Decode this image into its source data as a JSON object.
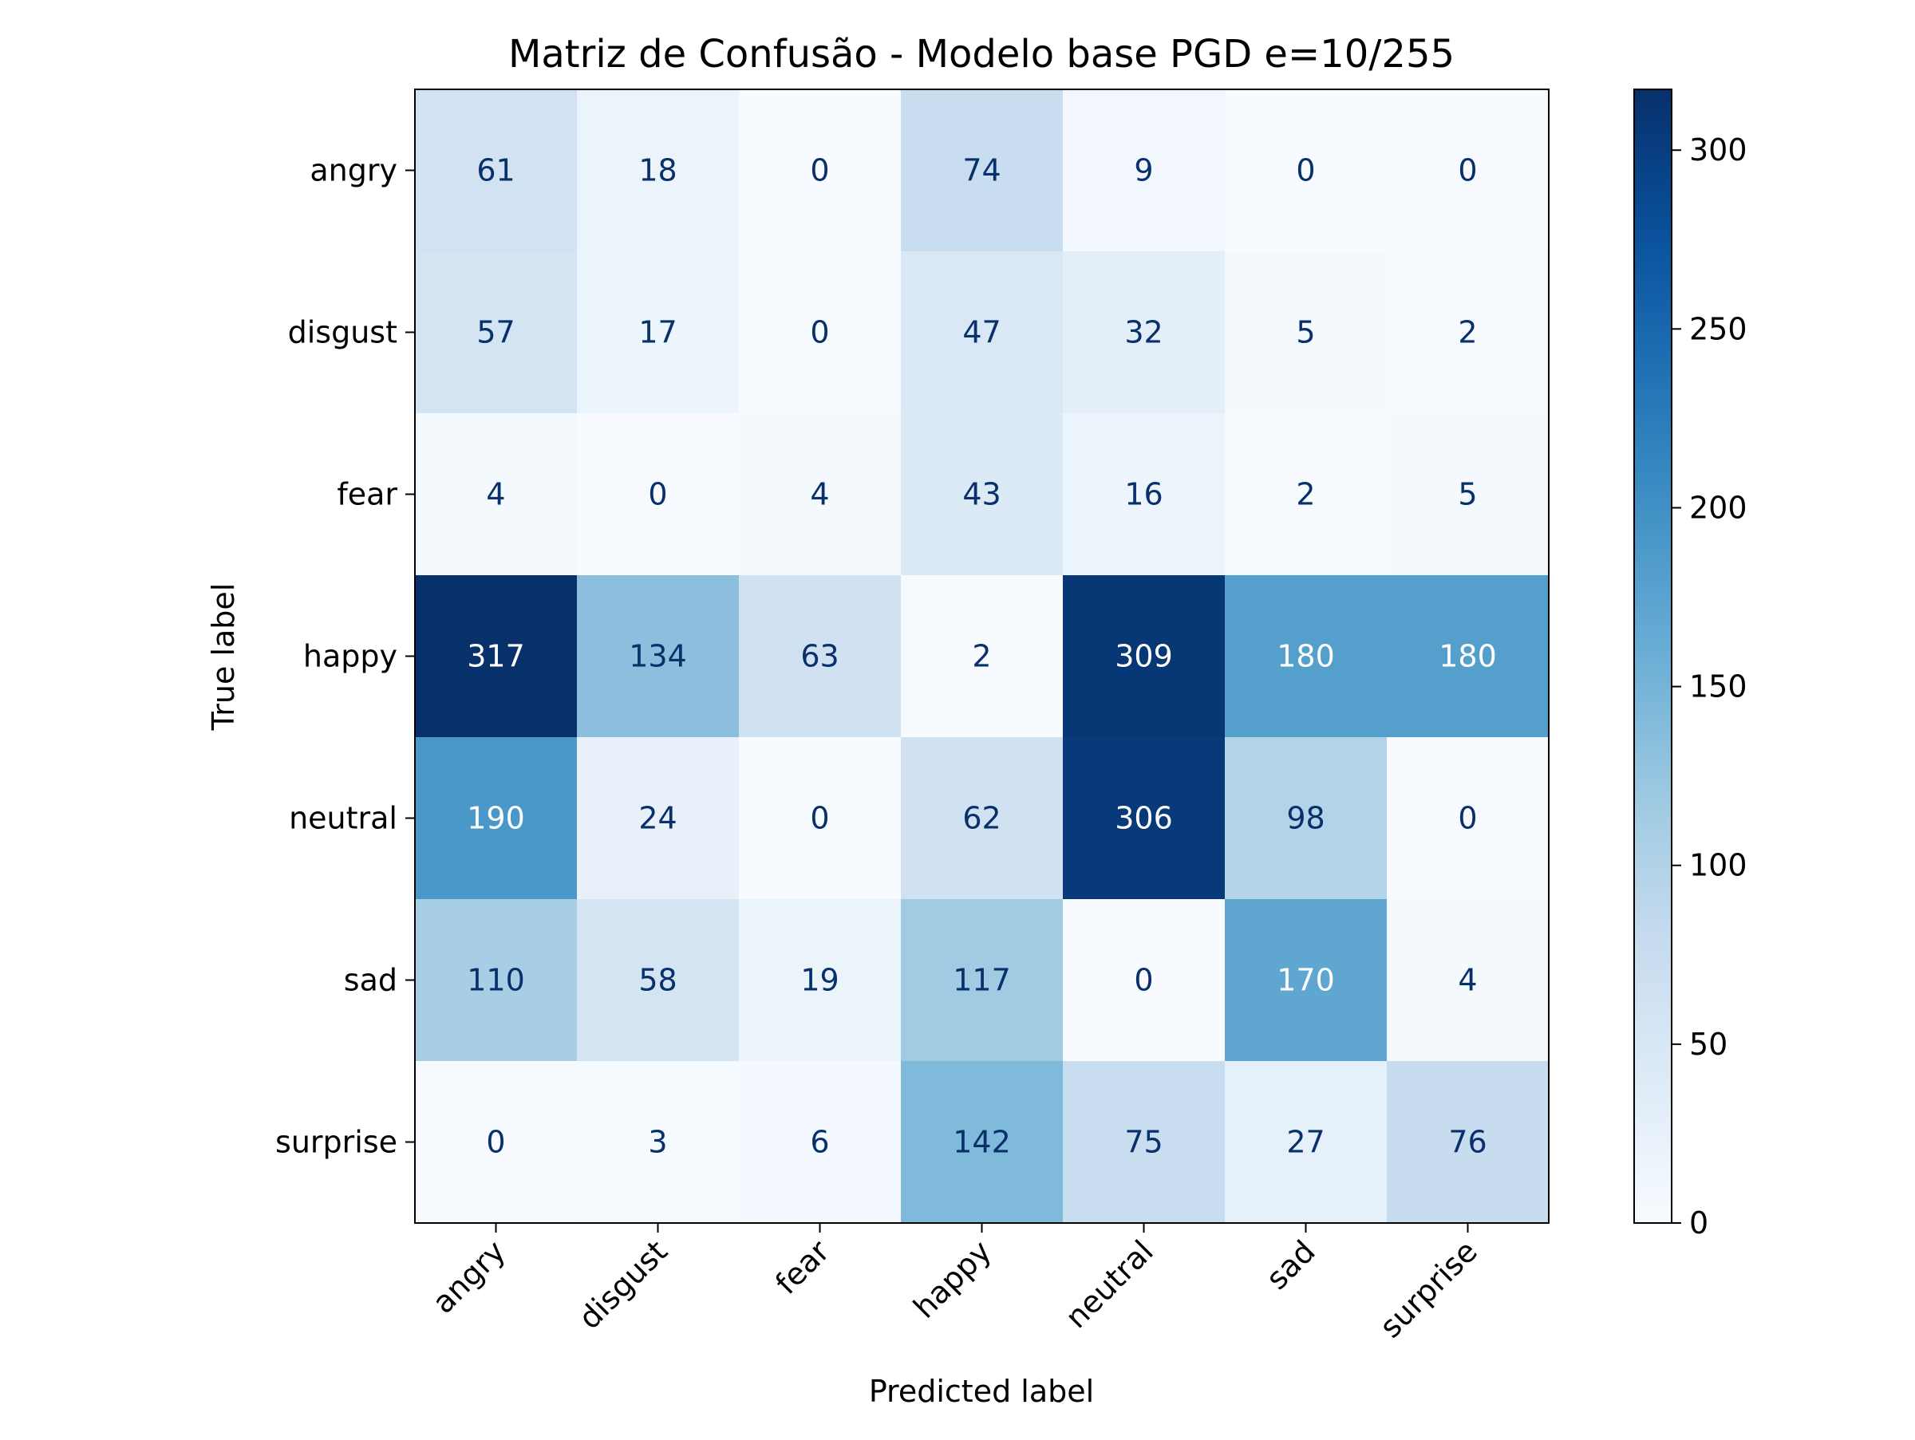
{
  "chart_data": {
    "type": "heatmap",
    "title": "Matriz de Confusão - Modelo base PGD e=10/255",
    "xlabel": "Predicted label",
    "ylabel": "True label",
    "x_categories": [
      "angry",
      "disgust",
      "fear",
      "happy",
      "neutral",
      "sad",
      "surprise"
    ],
    "y_categories": [
      "angry",
      "disgust",
      "fear",
      "happy",
      "neutral",
      "sad",
      "surprise"
    ],
    "values": [
      [
        61,
        18,
        0,
        74,
        9,
        0,
        0
      ],
      [
        57,
        17,
        0,
        47,
        32,
        5,
        2
      ],
      [
        4,
        0,
        4,
        43,
        16,
        2,
        5
      ],
      [
        317,
        134,
        63,
        2,
        309,
        180,
        180
      ],
      [
        190,
        24,
        0,
        62,
        306,
        98,
        0
      ],
      [
        110,
        58,
        19,
        117,
        0,
        170,
        4
      ],
      [
        0,
        3,
        6,
        142,
        75,
        27,
        76
      ]
    ],
    "colorbar": {
      "range": [
        0,
        317
      ],
      "ticks": [
        0,
        50,
        100,
        150,
        200,
        250,
        300
      ],
      "colormap": "Blues"
    },
    "grid": false
  }
}
